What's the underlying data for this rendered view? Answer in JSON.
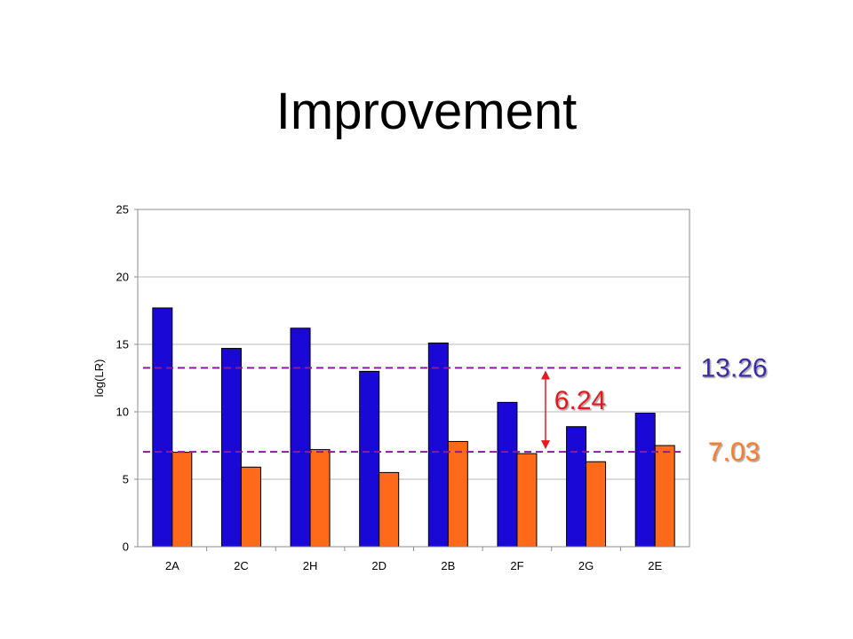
{
  "slide": {
    "title": "Improvement"
  },
  "chart_data": {
    "type": "bar",
    "title": "",
    "xlabel": "",
    "ylabel": "log(LR)",
    "ylim": [
      0,
      25
    ],
    "yticks": [
      0,
      5,
      10,
      15,
      20,
      25
    ],
    "grid": true,
    "legend": "none",
    "categories": [
      "2A",
      "2C",
      "2H",
      "2D",
      "2B",
      "2F",
      "2G",
      "2E"
    ],
    "series": [
      {
        "color": "#1a08d6",
        "values": [
          17.7,
          14.7,
          16.2,
          13.0,
          15.1,
          10.7,
          8.9,
          9.9
        ]
      },
      {
        "color": "#ff6a1a",
        "values": [
          7.0,
          5.9,
          7.2,
          5.5,
          7.8,
          6.9,
          6.3,
          7.5
        ]
      }
    ],
    "reference_lines": [
      {
        "value": 13.26,
        "label": "13.26",
        "color": "#8a1a9e",
        "label_color": "#3a2aa8"
      },
      {
        "value": 7.03,
        "label": "7.03",
        "color": "#8a1a9e",
        "label_color": "#ff7a22"
      }
    ],
    "difference_annotation": {
      "label": "6.24",
      "color": "#e8181e",
      "from": 13.26,
      "to": 7.03
    }
  }
}
